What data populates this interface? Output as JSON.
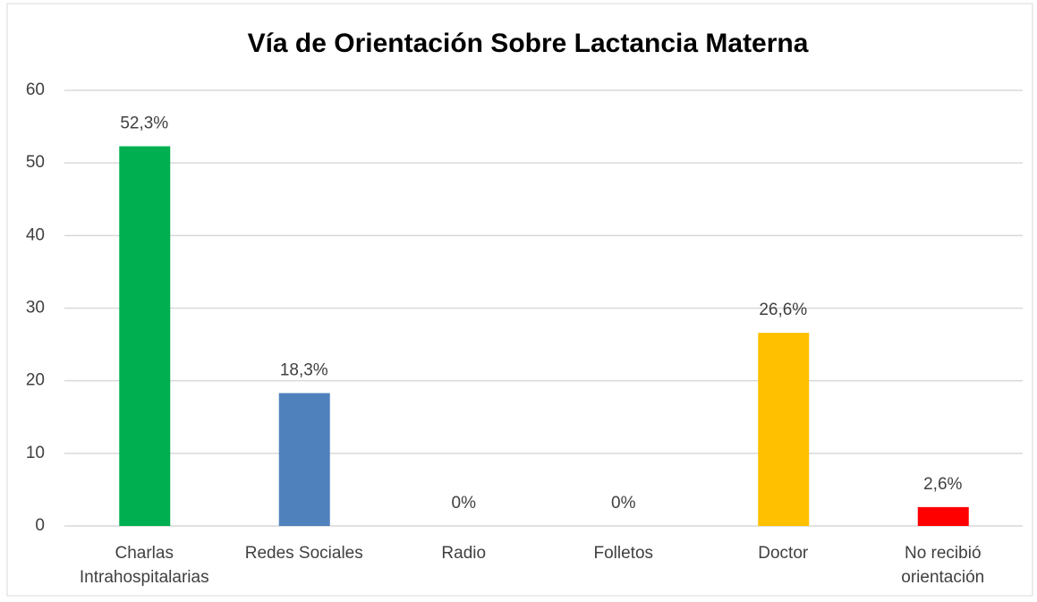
{
  "chart_data": {
    "type": "bar",
    "title": "Vía de Orientación Sobre Lactancia Materna",
    "categories": [
      "Charlas Intrahospitalarias",
      "Redes Sociales",
      "Radio",
      "Folletos",
      "Doctor",
      "No recibió orientación"
    ],
    "values": [
      52.3,
      18.3,
      0,
      0,
      26.6,
      2.6
    ],
    "value_labels": [
      "52,3%",
      "18,3%",
      "0%",
      "0%",
      "26,6%",
      "2,6%"
    ],
    "colors": [
      "#00b050",
      "#4f81bd",
      "#a5a5a5",
      "#a5a5a5",
      "#ffc000",
      "#ff0000"
    ],
    "ylim": [
      0,
      60
    ],
    "yticks": [
      0,
      10,
      20,
      30,
      40,
      50,
      60
    ],
    "grid": true
  }
}
